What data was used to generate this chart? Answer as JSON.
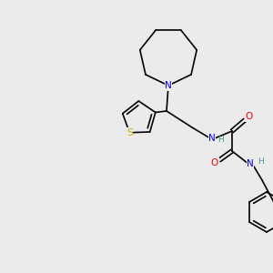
{
  "bg_color": "#ebebeb",
  "bond_color": "#000000",
  "atom_colors": {
    "N": "#0000ff",
    "O": "#ff0000",
    "S": "#ccaa00",
    "C": "#000000",
    "H": "#4a9a9a"
  },
  "font_size_atom": 7.5,
  "font_size_H": 6.5,
  "line_width": 1.2
}
